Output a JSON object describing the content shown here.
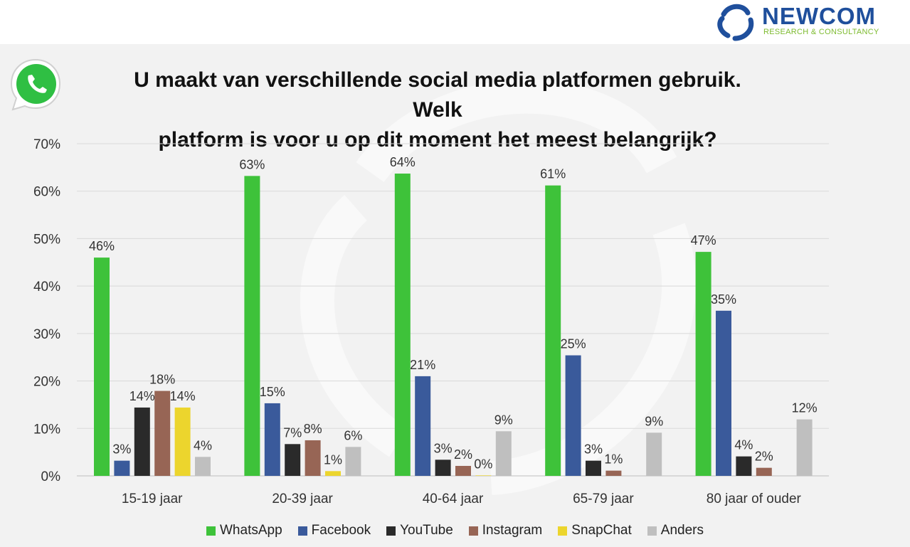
{
  "logo": {
    "brand": "NEWCOM",
    "tagline": "RESEARCH & CONSULTANCY",
    "icon": "newcom-swirl-icon"
  },
  "app_icon": "whatsapp-icon",
  "chart_data": {
    "type": "bar",
    "title": "U maakt van verschillende social media platformen gebruik. Welk platform is voor u op dit moment het meest belangrijk?",
    "title_lines": [
      "U maakt van verschillende social media platformen gebruik. Welk",
      "platform is voor u op dit moment het meest belangrijk?"
    ],
    "categories": [
      "15-19 jaar",
      "20-39 jaar",
      "40-64 jaar",
      "65-79 jaar",
      "80 jaar of ouder"
    ],
    "ylim": [
      0,
      70
    ],
    "yticks": [
      0,
      10,
      20,
      30,
      40,
      50,
      60,
      70
    ],
    "ytick_labels": [
      "0%",
      "10%",
      "20%",
      "30%",
      "40%",
      "50%",
      "60%",
      "70%"
    ],
    "grid": true,
    "legend_position": "bottom",
    "series": [
      {
        "name": "WhatsApp",
        "color": "#3ec23a",
        "values": [
          46,
          63.2,
          63.7,
          61.2,
          47.2
        ],
        "labels": [
          "46%",
          "63%",
          "64%",
          "61%",
          "47%"
        ]
      },
      {
        "name": "Facebook",
        "color": "#3a5a9b",
        "values": [
          3.2,
          15.3,
          21,
          25.4,
          34.8
        ],
        "labels": [
          "3%",
          "15%",
          "21%",
          "25%",
          "35%"
        ]
      },
      {
        "name": "YouTube",
        "color": "#2a2a2a",
        "values": [
          14.4,
          6.7,
          3.4,
          3.2,
          4.1
        ],
        "labels": [
          "14%",
          "7%",
          "3%",
          "3%",
          "4%"
        ]
      },
      {
        "name": "Instagram",
        "color": "#976555",
        "values": [
          17.9,
          7.5,
          2.1,
          1.1,
          1.7
        ],
        "labels": [
          "18%",
          "8%",
          "2%",
          "1%",
          "2%"
        ]
      },
      {
        "name": "SnapChat",
        "color": "#ecd52d",
        "values": [
          14.4,
          1,
          0.1,
          null,
          null
        ],
        "labels": [
          "14%",
          "1%",
          "0%",
          null,
          null
        ]
      },
      {
        "name": "Anders",
        "color": "#bfbfbf",
        "values": [
          4,
          6.1,
          9.4,
          9.1,
          11.9
        ],
        "labels": [
          "4%",
          "6%",
          "9%",
          "9%",
          "12%"
        ]
      }
    ]
  }
}
